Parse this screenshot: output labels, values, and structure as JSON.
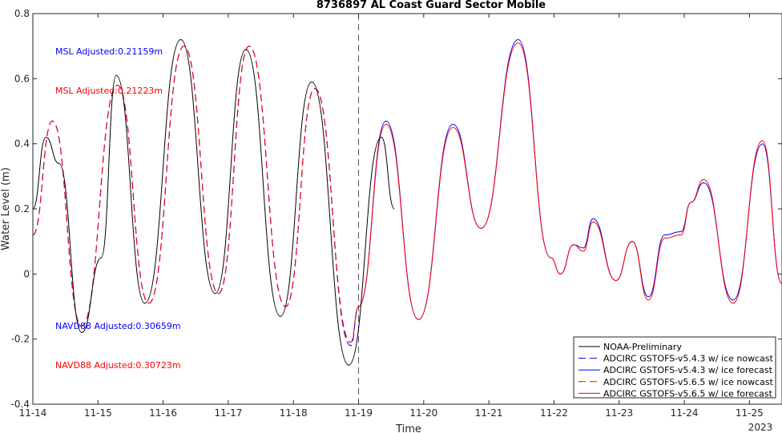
{
  "chart_data": {
    "type": "line",
    "title": "8736897 AL Coast Guard Sector Mobile",
    "xlabel": "Time",
    "ylabel": "Water Level (m)",
    "x_unit": "day of November 2023",
    "xlim": [
      14,
      25.5
    ],
    "ylim": [
      -0.4,
      0.8
    ],
    "x_ticks": [
      14,
      15,
      16,
      17,
      18,
      19,
      20,
      21,
      22,
      23,
      24,
      25
    ],
    "x_tick_labels": [
      "11-14",
      "11-15",
      "11-16",
      "11-17",
      "11-18",
      "11-19",
      "11-20",
      "11-21",
      "11-22",
      "11-23",
      "11-24",
      "11-25"
    ],
    "x_year_label": "2023",
    "y_ticks": [
      -0.4,
      -0.2,
      0,
      0.2,
      0.4,
      0.6,
      0.8
    ],
    "y_tick_labels": [
      "-0.4",
      "-0.2",
      "0",
      "0.2",
      "0.4",
      "0.6",
      "0.8"
    ],
    "nowcast_forecast_divider": 19,
    "grid": false,
    "legend_placement": "bottom-right",
    "annotations": [
      {
        "text": "MSL Adjusted:0.21159m",
        "color": "#0000ff"
      },
      {
        "text": "MSL Adjusted:0.21223m",
        "color": "#ff0000"
      },
      {
        "text": "NAVD88 Adjusted:0.30659m",
        "color": "#0000ff"
      },
      {
        "text": "NAVD88 Adjusted:0.30723m",
        "color": "#ff0000"
      }
    ],
    "series": [
      {
        "name": "NOAA-Preliminary",
        "color": "#000000",
        "dash": "solid",
        "x": [
          14.0,
          14.2,
          14.4,
          14.75,
          15.05,
          15.28,
          15.72,
          16.27,
          16.8,
          17.27,
          17.8,
          18.28,
          18.85,
          19.35,
          19.55
        ],
        "y": [
          0.2,
          0.42,
          0.34,
          -0.18,
          0.05,
          0.61,
          -0.09,
          0.72,
          -0.06,
          0.69,
          -0.13,
          0.59,
          -0.28,
          0.42,
          0.2
        ]
      },
      {
        "name": "ADCIRC GSTOFS-v5.4.3 w/ ice nowcast",
        "color": "#0000ff",
        "dash": "dashed",
        "x": [
          14.0,
          14.3,
          14.75,
          15.3,
          15.78,
          16.32,
          16.85,
          17.32,
          17.88,
          18.33,
          18.88,
          19.0
        ],
        "y": [
          0.12,
          0.47,
          -0.16,
          0.58,
          -0.09,
          0.7,
          -0.06,
          0.7,
          -0.1,
          0.57,
          -0.22,
          -0.1
        ]
      },
      {
        "name": "ADCIRC GSTOFS-v5.4.3 w/ ice forecast",
        "color": "#0000ff",
        "dash": "solid",
        "x": [
          19.0,
          19.42,
          19.92,
          20.45,
          20.88,
          21.45,
          21.95,
          22.1,
          22.3,
          22.45,
          22.6,
          22.95,
          23.2,
          23.45,
          23.7,
          23.95,
          24.1,
          24.3,
          24.75,
          25.2,
          25.5
        ],
        "y": [
          -0.1,
          0.47,
          -0.14,
          0.46,
          0.14,
          0.72,
          0.05,
          0.0,
          0.09,
          0.08,
          0.17,
          -0.02,
          0.1,
          -0.07,
          0.12,
          0.13,
          0.22,
          0.28,
          -0.08,
          0.4,
          -0.03
        ]
      },
      {
        "name": "ADCIRC GSTOFS-v5.6.5 w/ ice nowcast",
        "color": "#ff0000",
        "dash": "dashed",
        "x": [
          14.0,
          14.3,
          14.75,
          15.3,
          15.78,
          16.32,
          16.85,
          17.32,
          17.88,
          18.33,
          18.88,
          19.0
        ],
        "y": [
          0.12,
          0.47,
          -0.16,
          0.58,
          -0.09,
          0.7,
          -0.06,
          0.7,
          -0.1,
          0.57,
          -0.21,
          -0.1
        ]
      },
      {
        "name": "ADCIRC GSTOFS-v5.6.5 w/ ice forecast",
        "color": "#ff0000",
        "dash": "solid",
        "x": [
          19.0,
          19.42,
          19.92,
          20.45,
          20.88,
          21.45,
          21.95,
          22.1,
          22.3,
          22.45,
          22.6,
          22.95,
          23.2,
          23.45,
          23.7,
          23.95,
          24.1,
          24.3,
          24.75,
          25.2,
          25.5
        ],
        "y": [
          -0.1,
          0.46,
          -0.14,
          0.45,
          0.14,
          0.71,
          0.05,
          0.0,
          0.09,
          0.07,
          0.16,
          -0.02,
          0.1,
          -0.08,
          0.11,
          0.12,
          0.22,
          0.29,
          -0.09,
          0.41,
          -0.03
        ]
      }
    ]
  }
}
